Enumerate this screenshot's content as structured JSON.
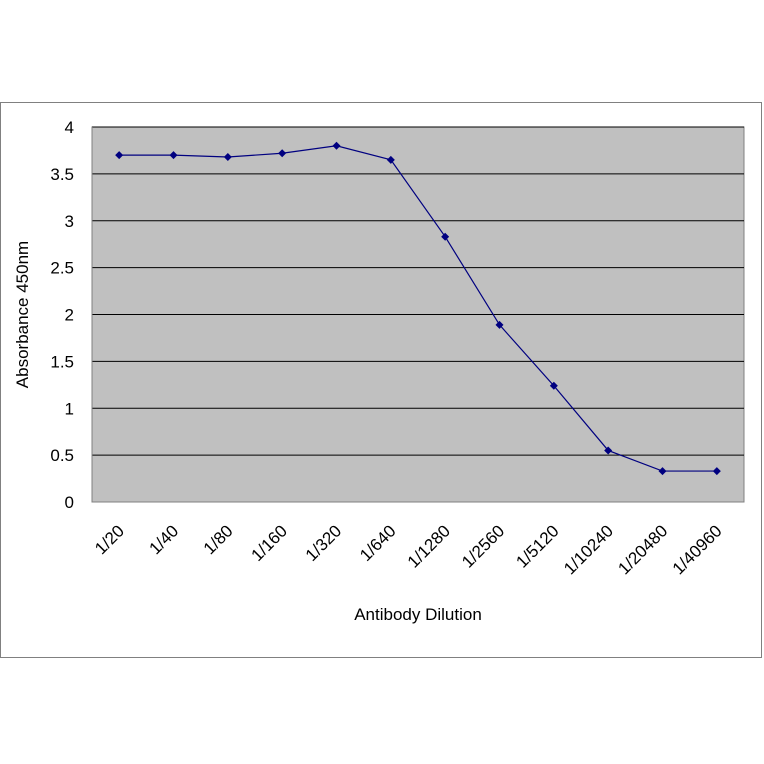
{
  "chart_data": {
    "type": "line",
    "title": "",
    "xlabel": "Antibody Dilution",
    "ylabel": "Absorbance 450nm",
    "categories": [
      "1/20",
      "1/40",
      "1/80",
      "1/160",
      "1/320",
      "1/640",
      "1/1280",
      "1/2560",
      "1/5120",
      "1/10240",
      "1/20480",
      "1/40960"
    ],
    "series": [
      {
        "values": [
          3.7,
          3.7,
          3.68,
          3.72,
          3.8,
          3.65,
          2.83,
          1.89,
          1.24,
          0.55,
          0.33,
          0.33
        ],
        "color": "#000080"
      }
    ],
    "ylim": [
      0,
      4
    ],
    "yticks": [
      "0",
      "0.5",
      "1",
      "1.5",
      "2",
      "2.5",
      "3",
      "3.5",
      "4"
    ],
    "grid": true,
    "legend": "none",
    "plot_background": "#c0c0c0",
    "gridline_color": "#000000"
  }
}
